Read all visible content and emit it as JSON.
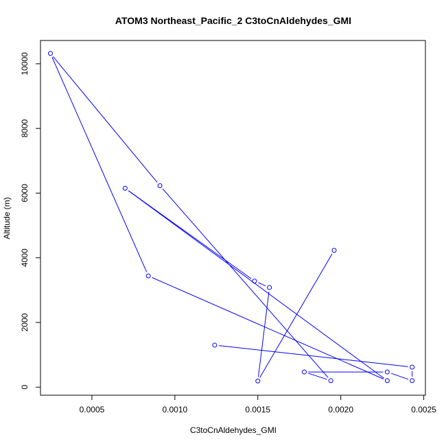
{
  "chart_data": {
    "type": "line",
    "title": "ATOM3 Northeast_Pacific_2 C3toCnAldehydes_GMI",
    "xlabel": "C3toCnAldehydes_GMI",
    "ylabel": "Altitude (m)",
    "xlim": [
      0.00019,
      0.00251
    ],
    "ylim": [
      -250,
      10720
    ],
    "xticks": [
      0.0005,
      0.001,
      0.0015,
      0.002,
      0.0025
    ],
    "xtick_labels": [
      "0.0005",
      "0.0010",
      "0.0015",
      "0.0020",
      "0.0025"
    ],
    "yticks": [
      0,
      2000,
      4000,
      6000,
      8000,
      10000
    ],
    "ytick_labels": [
      "0",
      "2000",
      "4000",
      "6000",
      "8000",
      "10000"
    ],
    "grid": false,
    "series": [
      {
        "color": "#0000ff",
        "marker": "open-circle",
        "points": [
          {
            "x": 0.00124,
            "y": 1300
          },
          {
            "x": 0.00243,
            "y": 620
          },
          {
            "x": 0.00243,
            "y": 200
          },
          {
            "x": 0.00228,
            "y": 470
          },
          {
            "x": 0.00178,
            "y": 470
          },
          {
            "x": 0.00194,
            "y": 200
          },
          {
            "x": 0.00091,
            "y": 6230
          },
          {
            "x": 0.00025,
            "y": 10320
          },
          {
            "x": 0.00084,
            "y": 3440
          },
          {
            "x": 0.00228,
            "y": 200
          },
          {
            "x": 0.0007,
            "y": 6150
          },
          {
            "x": 0.00148,
            "y": 3280
          },
          {
            "x": 0.00157,
            "y": 3080
          },
          {
            "x": 0.0015,
            "y": 190
          },
          {
            "x": 0.00196,
            "y": 4230
          }
        ]
      }
    ]
  }
}
